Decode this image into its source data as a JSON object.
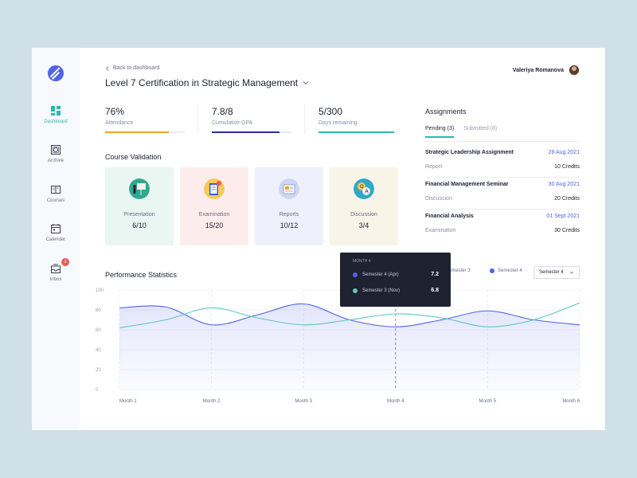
{
  "sidebar": {
    "items": [
      {
        "label": "Dashboard",
        "icon": "dashboard-icon"
      },
      {
        "label": "Archive",
        "icon": "archive-icon"
      },
      {
        "label": "Courses",
        "icon": "courses-icon"
      },
      {
        "label": "Calender",
        "icon": "calendar-icon"
      },
      {
        "label": "Inbox",
        "icon": "inbox-icon",
        "badge": "3"
      }
    ]
  },
  "header": {
    "back_label": "Back to dashboard",
    "title": "Level 7 Certification in Strategic Management",
    "user_name": "Valeriya Romanova"
  },
  "stats": [
    {
      "value": "76%",
      "label": "Attendance",
      "progress": 0.8,
      "color": "#f4a41a"
    },
    {
      "value": "7.8/8",
      "label": "Cumulative GPA",
      "progress": 0.85,
      "color": "#2d2f9e"
    },
    {
      "value": "5/300",
      "label": "Days remaining",
      "progress": 0.95,
      "color": "#2bb7b3"
    }
  ],
  "course_validation": {
    "title": "Course Validation",
    "cards": [
      {
        "label": "Presentation",
        "value": "6/10",
        "bg": "#eaf6f1",
        "icon": "presentation-icon"
      },
      {
        "label": "Examination",
        "value": "15/20",
        "bg": "#fdecec",
        "icon": "examination-icon"
      },
      {
        "label": "Reports",
        "value": "10/12",
        "bg": "#eef1fb",
        "icon": "reports-icon"
      },
      {
        "label": "Discussion",
        "value": "3/4",
        "bg": "#f8f4e8",
        "icon": "discussion-icon"
      }
    ]
  },
  "assignments": {
    "title": "Assignments",
    "tabs": [
      "Pending (3)",
      "Submitted (8)"
    ],
    "items": [
      {
        "title": "Strategic Leadership Assignment",
        "date": "28 Aug 2021",
        "type": "Report",
        "credits": "10 Credits"
      },
      {
        "title": "Financial Management Seminar",
        "date": "30 Aug 2021",
        "type": "Discussion",
        "credits": "20 Credits"
      },
      {
        "title": "Financial Analysis",
        "date": "01 Sept 2021",
        "type": "Examination",
        "credits": "30 Credits"
      }
    ]
  },
  "performance": {
    "title": "Performance Statistics",
    "legend": [
      "Semester 3",
      "Semester 4"
    ],
    "select_value": "Semester 4",
    "tooltip": {
      "title": "MONTH 4",
      "rows": [
        {
          "name": "Semester 4 (Apr)",
          "value": "7.2",
          "color": "#4f63e6"
        },
        {
          "name": "Semester 3 (Nov)",
          "value": "6.8",
          "color": "#5cc7bd"
        }
      ]
    }
  },
  "chart_data": {
    "type": "line",
    "title": "Performance Statistics",
    "categories": [
      "Month 1",
      "Month 2",
      "Month 3",
      "Month 4",
      "Month 5",
      "Month 6"
    ],
    "yticks": [
      "0",
      "20",
      "40",
      "60",
      "80",
      "100"
    ],
    "ylim": [
      0,
      100
    ],
    "series": [
      {
        "name": "Semester 4",
        "color": "#4f63e6",
        "x": [
          0,
          0.5,
          1,
          1.5,
          2,
          2.5,
          3,
          3.5,
          4,
          4.5,
          5
        ],
        "values": [
          82,
          83,
          65,
          75,
          86,
          70,
          63,
          70,
          79,
          70,
          65
        ]
      },
      {
        "name": "Semester 3",
        "color": "#5cc7bd",
        "x": [
          0,
          0.5,
          1,
          1.5,
          2,
          2.5,
          3,
          3.5,
          4,
          4.5,
          5
        ],
        "values": [
          62,
          70,
          82,
          72,
          65,
          70,
          76,
          72,
          63,
          70,
          87
        ]
      }
    ],
    "highlight_category": "Month 4"
  }
}
